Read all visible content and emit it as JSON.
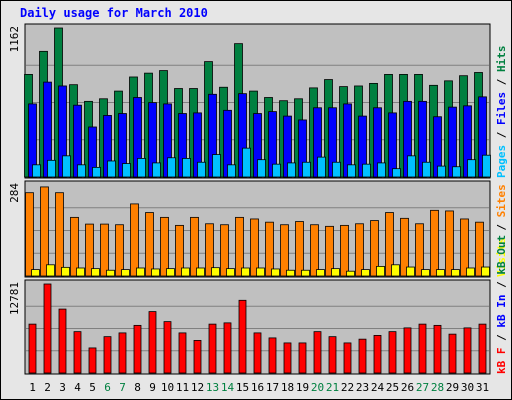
{
  "colors": {
    "frame_bg": "#e6e6e6",
    "plot_bg": "#c0c0c0",
    "hits": "#008040",
    "files": "#0000ff",
    "pages": "#00c0ff",
    "sites": "#ff8000",
    "visits": "#ffff00",
    "kbf": "#ff0000",
    "title": "#0000ff",
    "weekend": "#008040",
    "weekday": "#000000",
    "kbin": "#0000ff"
  },
  "chart_data": {
    "type": "bar",
    "title": "Daily usage for March 2010",
    "days": [
      "1",
      "2",
      "3",
      "4",
      "5",
      "6",
      "7",
      "8",
      "9",
      "10",
      "11",
      "12",
      "13",
      "14",
      "15",
      "16",
      "17",
      "18",
      "19",
      "20",
      "21",
      "22",
      "23",
      "24",
      "25",
      "26",
      "27",
      "28",
      "29",
      "30",
      "31"
    ],
    "weekend_days": [
      "6",
      "7",
      "13",
      "14",
      "20",
      "21",
      "27",
      "28"
    ],
    "panels": [
      {
        "id": "requests",
        "scale_label": "1162",
        "ymax": 1162,
        "right_labels": [
          {
            "text": "Pages",
            "color": "#00c0ff"
          },
          {
            "text": " / ",
            "color": "#000000"
          },
          {
            "text": "Files",
            "color": "#0000ff"
          },
          {
            "text": " / ",
            "color": "#000000"
          },
          {
            "text": "Hits",
            "color": "#008040"
          }
        ],
        "series": [
          {
            "name": "Hits",
            "color": "#008040",
            "values": [
              800,
              980,
              1162,
              720,
              590,
              610,
              670,
              780,
              810,
              830,
              690,
              690,
              900,
              700,
              1040,
              670,
              620,
              595,
              610,
              695,
              760,
              705,
              710,
              730,
              800,
              800,
              800,
              715,
              750,
              790,
              815
            ]
          },
          {
            "name": "Files",
            "color": "#0000ff",
            "values": [
              570,
              740,
              710,
              560,
              390,
              480,
              495,
              620,
              580,
              570,
              495,
              500,
              645,
              520,
              650,
              495,
              510,
              475,
              445,
              540,
              540,
              570,
              475,
              540,
              500,
              590,
              590,
              470,
              545,
              555,
              625
            ]
          },
          {
            "name": "Pages",
            "color": "#00c0ff",
            "values": [
              95,
              130,
              165,
              95,
              75,
              125,
              105,
              145,
              110,
              150,
              145,
              115,
              175,
              95,
              225,
              135,
              100,
              110,
              115,
              155,
              115,
              95,
              100,
              110,
              65,
              165,
              115,
              85,
              80,
              135,
              170
            ]
          }
        ]
      },
      {
        "id": "visitors",
        "scale_label": "284",
        "ymax": 284,
        "right_labels": [
          {
            "text": "Visits",
            "color": "#ffff00"
          },
          {
            "text": " / ",
            "color": "#000000"
          },
          {
            "text": "Sites",
            "color": "#ff8000"
          }
        ],
        "series": [
          {
            "name": "Sites",
            "color": "#ff8000",
            "values": [
              260,
              278,
              260,
              183,
              162,
              162,
              160,
              225,
              198,
              183,
              158,
              183,
              163,
              160,
              183,
              178,
              168,
              160,
              170,
              160,
              155,
              158,
              163,
              173,
              198,
              180,
              163,
              205,
              203,
              178,
              168
            ]
          },
          {
            "name": "Visits",
            "color": "#ffff00",
            "values": [
              20,
              35,
              27,
              25,
              23,
              18,
              20,
              25,
              22,
              23,
              25,
              25,
              26,
              23,
              25,
              25,
              22,
              18,
              18,
              20,
              23,
              15,
              20,
              30,
              35,
              28,
              20,
              20,
              20,
              25,
              28
            ]
          }
        ]
      },
      {
        "id": "kbytes",
        "scale_label": "12781",
        "ymax": 12781,
        "right_labels": [
          {
            "text": "kB F",
            "color": "#ff0000"
          },
          {
            "text": " / ",
            "color": "#000000"
          },
          {
            "text": "kB In",
            "color": "#0000ff"
          },
          {
            "text": " / ",
            "color": "#000000"
          },
          {
            "text": "kB Out",
            "color": "#008040"
          }
        ],
        "series": [
          {
            "name": "kB F",
            "color": "#ff0000",
            "values": [
              7020,
              12781,
              9180,
              5940,
              3600,
              5220,
              5760,
              6840,
              8820,
              7380,
              5760,
              4680,
              7020,
              7200,
              10440,
              5760,
              5040,
              4320,
              4320,
              5940,
              5220,
              4320,
              4860,
              5400,
              5940,
              6480,
              7020,
              6840,
              5580,
              6480,
              7020
            ]
          }
        ]
      }
    ]
  }
}
